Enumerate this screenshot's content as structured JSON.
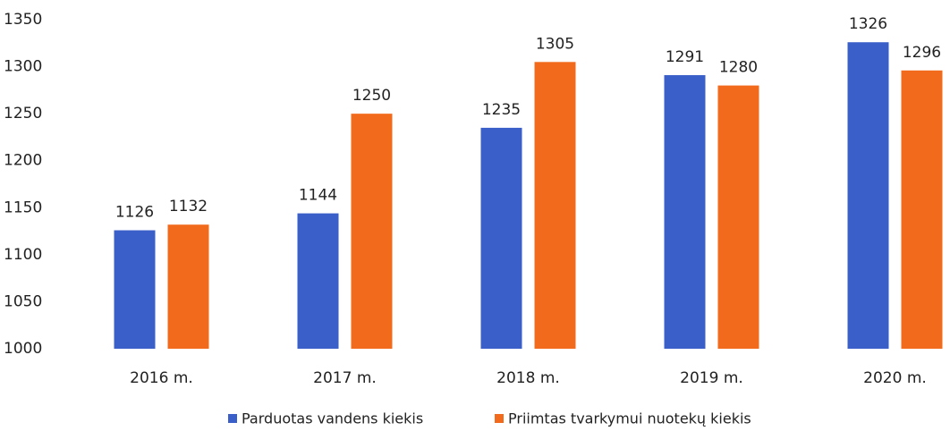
{
  "chart_data": {
    "type": "bar",
    "categories": [
      "2016 m.",
      "2017 m.",
      "2018 m.",
      "2019 m.",
      "2020 m."
    ],
    "series": [
      {
        "name": "Parduotas vandens kiekis",
        "color": "#3a5fc8",
        "values": [
          1126,
          1144,
          1235,
          1291,
          1326
        ]
      },
      {
        "name": "Priimtas tvarkymui nuotekų kiekis",
        "color": "#f26b1d",
        "values": [
          1132,
          1250,
          1305,
          1280,
          1296
        ]
      }
    ],
    "ylim": [
      1000,
      1350
    ],
    "yticks": [
      1000,
      1050,
      1100,
      1150,
      1200,
      1250,
      1300,
      1350
    ],
    "grid": false,
    "legend": "bottom"
  }
}
